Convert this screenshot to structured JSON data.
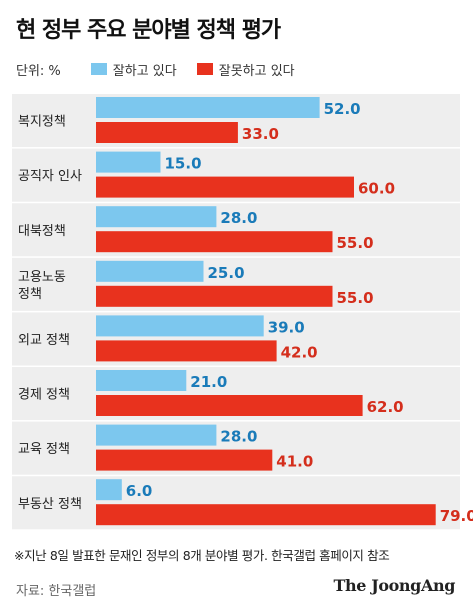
{
  "title": "현 정부 주요 분야별 정책 평가",
  "legend": {
    "unit": "단위: %",
    "good_label": "잘하고 있다",
    "bad_label": "잘못하고 있다"
  },
  "colors": {
    "good": "#7cc7ee",
    "bad": "#e8321e",
    "good_text": "#1a7bb9",
    "bad_text": "#d42e1c",
    "row_bg": "#eeeeee"
  },
  "chart_data": {
    "type": "bar",
    "orientation": "horizontal",
    "categories": [
      "복지정책",
      "공직자 인사",
      "대북정책",
      "고용노동\n정책",
      "외교 정책",
      "경제 정책",
      "교육 정책",
      "부동산 정책"
    ],
    "series": [
      {
        "name": "잘하고 있다",
        "values": [
          52.0,
          15.0,
          28.0,
          25.0,
          39.0,
          21.0,
          28.0,
          6.0
        ]
      },
      {
        "name": "잘못하고 있다",
        "values": [
          33.0,
          60.0,
          55.0,
          55.0,
          42.0,
          62.0,
          41.0,
          79.0
        ]
      }
    ],
    "xlim": [
      0,
      100
    ],
    "grid": false,
    "legend_position": "top"
  },
  "footnote": "※지난 8일 발표한 문재인 정부의 8개 분야별 평가. 한국갤럽 홈페이지 참조",
  "source": "자료: 한국갤럽",
  "brand": "The JoongAng"
}
